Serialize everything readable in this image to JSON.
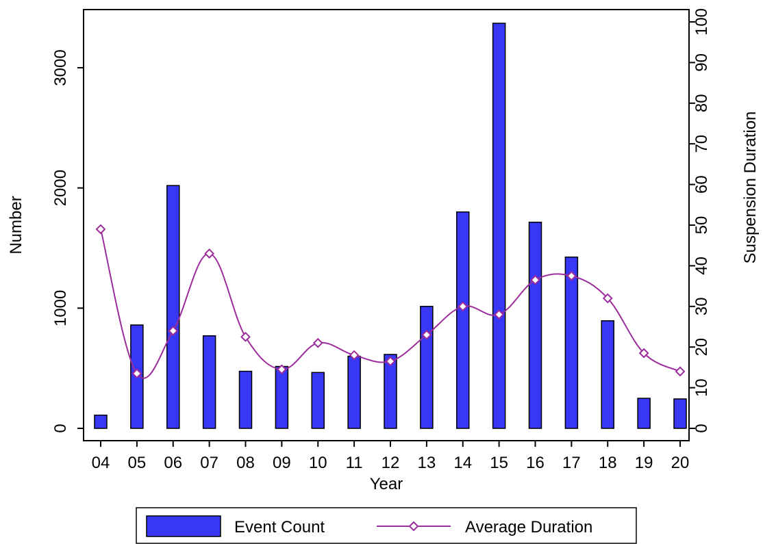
{
  "chart_data": {
    "type": "bar+line",
    "categories": [
      "04",
      "05",
      "06",
      "07",
      "08",
      "09",
      "10",
      "11",
      "12",
      "13",
      "14",
      "15",
      "16",
      "17",
      "18",
      "19",
      "20"
    ],
    "xlabel": "Year",
    "ylabel": "Number",
    "y2label": "Suspension Duration",
    "ylim": [
      0,
      3400
    ],
    "y2lim": [
      0,
      100
    ],
    "yticks": [
      "0",
      "1000",
      "2000",
      "3000"
    ],
    "y2ticks": [
      "0",
      "10",
      "20",
      "30",
      "40",
      "50",
      "60",
      "70",
      "80",
      "90",
      "100"
    ],
    "series": [
      {
        "name": "Event Count",
        "kind": "bar",
        "axis": "left",
        "values": [
          110,
          860,
          2020,
          770,
          475,
          515,
          465,
          600,
          615,
          1015,
          1800,
          3370,
          1715,
          1425,
          895,
          250,
          245
        ]
      },
      {
        "name": "Average Duration",
        "kind": "line",
        "axis": "right",
        "marker": "diamond",
        "values": [
          49,
          13.5,
          24,
          43,
          22.5,
          14.5,
          21,
          18,
          16.5,
          23,
          30,
          28,
          36.5,
          37.5,
          32,
          18.5,
          14
        ]
      }
    ],
    "colors": {
      "bar_fill": "#3737f5",
      "bar_stroke": "#000000",
      "line": "#9b2c9b"
    },
    "legend": {
      "placement": "bottom"
    },
    "grid": false
  }
}
